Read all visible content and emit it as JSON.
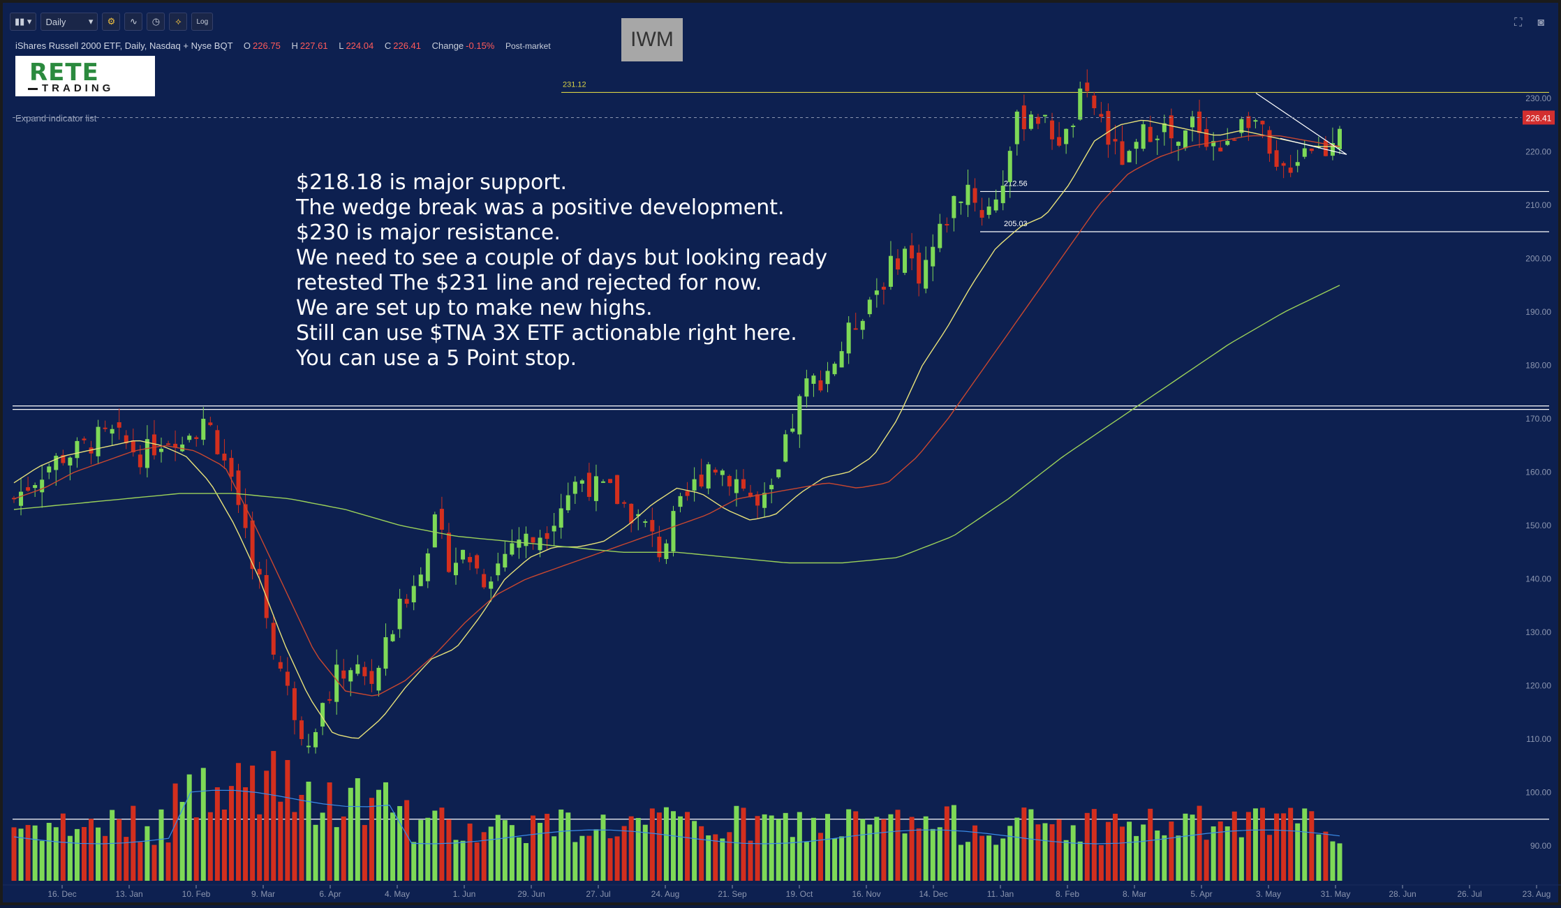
{
  "toolbar": {
    "bars_icon": "bar-style-icon",
    "interval_label": "Daily",
    "settings_icon": "gear-icon",
    "indicators_icon": "indicator-icon",
    "clock_icon": "clock-icon",
    "compare_icon": "compare-icon",
    "log_label": "Log"
  },
  "header": {
    "symbol_desc": "iShares Russell 2000 ETF, Daily, Nasdaq + Nyse BQT",
    "open_label": "O",
    "open": "226.75",
    "high_label": "H",
    "high": "227.61",
    "low_label": "L",
    "low": "224.04",
    "close_label": "C",
    "close": "226.41",
    "change_label": "Change",
    "change": "-0.15%",
    "session": "Post-market",
    "ticker": "IWM"
  },
  "logo": {
    "line1": "RETE",
    "line2": "TRADING"
  },
  "expand_label": "Expand indicator list",
  "notes": [
    "$218.18 is major support.",
    "The wedge break was a positive development.",
    "$230 is major resistance.",
    "We need to see a couple of days but looking ready",
    "retested The $231 line and rejected for now.",
    "We are set up to make new highs.",
    "Still can use $TNA 3X ETF actionable right here.",
    "You can use a 5 Point stop."
  ],
  "colors": {
    "background": "#0d2050",
    "up": "#7ed957",
    "down": "#d32f1e",
    "resistance_line": "#d9d245",
    "ma_fast": "#e8e27a",
    "ma_mid": "#c9472f",
    "ma_slow": "#9bd15a",
    "volume_ma": "#3a8be8",
    "last_price_tag": "#d32f2f"
  },
  "chart_data": {
    "type": "candlestick",
    "title": "IWM",
    "y_axis": {
      "ticks": [
        90,
        100,
        110,
        120,
        130,
        140,
        150,
        160,
        170,
        180,
        190,
        200,
        210,
        220,
        230
      ],
      "range": [
        85,
        237
      ],
      "position": "right"
    },
    "x_axis": {
      "ticks": [
        "16. Dec",
        "13. Jan",
        "10. Feb",
        "9. Mar",
        "6. Apr",
        "4. May",
        "1. Jun",
        "29. Jun",
        "27. Jul",
        "24. Aug",
        "21. Sep",
        "19. Oct",
        "16. Nov",
        "14. Dec",
        "11. Jan",
        "8. Feb",
        "8. Mar",
        "5. Apr",
        "3. May",
        "31. May",
        "28. Jun",
        "26. Jul",
        "23. Aug"
      ]
    },
    "last_price": 226.41,
    "last_price_label": "226.41",
    "horizontal_levels": [
      {
        "value": 231.12,
        "label": "231.12",
        "color": "#d9d245"
      },
      {
        "value": 212.56,
        "label": "212.56",
        "color": "#ffffff"
      },
      {
        "value": 205.03,
        "label": "205.03",
        "color": "#ffffff"
      },
      {
        "value": 172.4,
        "label": "",
        "color": "#ffffff"
      },
      {
        "value": 95.0,
        "label": "",
        "color": "#ffffff"
      }
    ],
    "close_series": [
      155,
      158,
      161,
      163,
      164,
      166,
      167,
      165,
      163,
      166,
      167,
      168,
      169,
      163,
      150,
      142,
      128,
      118,
      110,
      115,
      122,
      124,
      120,
      127,
      135,
      142,
      150,
      143,
      145,
      140,
      143,
      148,
      147,
      150,
      155,
      159,
      157,
      156,
      153,
      150,
      145,
      152,
      157,
      162,
      160,
      158,
      153,
      156,
      168,
      176,
      178,
      182,
      188,
      193,
      197,
      202,
      197,
      203,
      210,
      214,
      208,
      213,
      225,
      228,
      224,
      222,
      230,
      228,
      220,
      218,
      224,
      225,
      220,
      226,
      222,
      220,
      228,
      225,
      215,
      218,
      222,
      220,
      226
    ],
    "ma_fast_series": [
      158,
      161,
      163,
      164,
      165,
      166,
      165,
      163,
      158,
      150,
      140,
      128,
      118,
      111,
      110,
      114,
      120,
      125,
      127,
      133,
      140,
      144,
      146,
      146,
      147,
      150,
      154,
      157,
      156,
      153,
      151,
      152,
      156,
      159,
      160,
      163,
      170,
      180,
      187,
      195,
      202,
      206,
      208,
      214,
      222,
      225,
      226,
      225,
      224,
      223,
      224,
      223,
      222,
      221,
      221
    ],
    "ma_mid_series": [
      155,
      157,
      160,
      162,
      164,
      165,
      164,
      161,
      150,
      138,
      126,
      119,
      118,
      121,
      126,
      132,
      137,
      140,
      142,
      144,
      146,
      148,
      150,
      152,
      155,
      156,
      157,
      158,
      157,
      158,
      163,
      170,
      178,
      186,
      194,
      202,
      210,
      216,
      219,
      221,
      222,
      223,
      223,
      222,
      221
    ],
    "ma_slow_series": [
      153,
      154,
      155,
      156,
      156,
      155,
      153,
      150,
      148,
      147,
      146,
      145,
      145,
      144,
      143,
      143,
      144,
      148,
      155,
      163,
      170,
      177,
      184,
      190,
      195
    ],
    "volume_scale_note": "relative"
  }
}
